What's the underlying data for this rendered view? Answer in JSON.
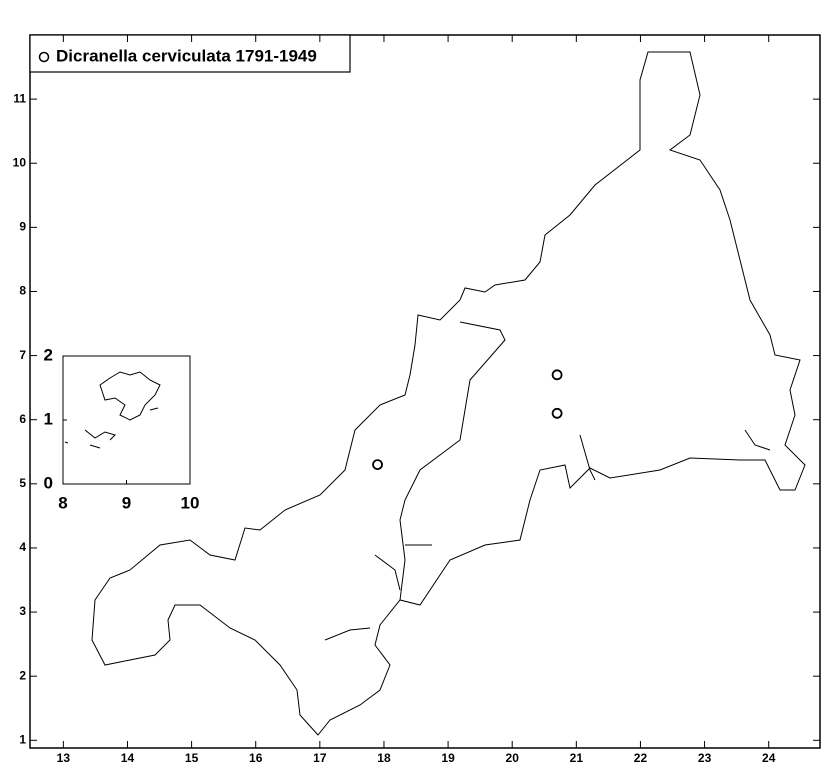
{
  "chart_data": {
    "type": "scatter",
    "xlim": [
      12.48,
      24.8
    ],
    "ylim": [
      0.88,
      12.0
    ],
    "xticks": [
      13,
      14,
      15,
      16,
      17,
      18,
      19,
      20,
      21,
      22,
      23,
      24
    ],
    "yticks": [
      1,
      2,
      3,
      4,
      5,
      6,
      7,
      8,
      9,
      10,
      11
    ],
    "legend": "top-left",
    "series": [
      {
        "name": "Dicranella cerviculata 1791-1949",
        "color": "#000000",
        "x": [
          17.9,
          20.7,
          20.7
        ],
        "y": [
          5.3,
          6.7,
          6.1
        ]
      }
    ],
    "inset": {
      "xlim": [
        8,
        10
      ],
      "ylim": [
        0,
        2
      ],
      "xticks": [
        8,
        9,
        10
      ],
      "yticks": [
        0,
        1,
        2
      ]
    }
  }
}
